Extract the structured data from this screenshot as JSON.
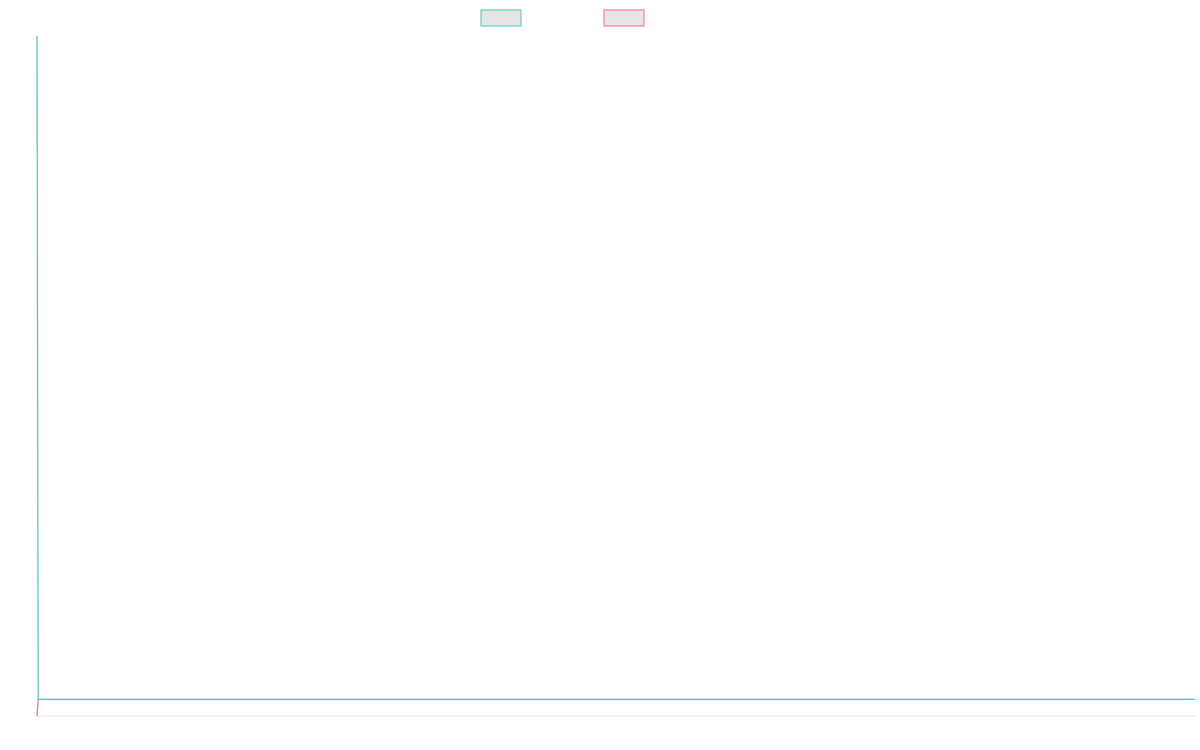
{
  "chart_data": {
    "type": "line",
    "legend_placement": "top-center",
    "grid": false,
    "series": [
      {
        "color": "#4bc0c0",
        "legend_fill": "#e6e6e6",
        "points": [
          [
            0,
            1.0
          ],
          [
            0.001,
            0.0
          ],
          [
            1,
            0.0
          ]
        ]
      },
      {
        "color": "#ff6384",
        "legend_fill": "#e6e6e6",
        "points": [
          [
            0,
            -0.025
          ],
          [
            0.001,
            0.0
          ]
        ]
      }
    ],
    "xlim": [
      0,
      1
    ],
    "ylim": [
      -0.025,
      1.0
    ]
  }
}
